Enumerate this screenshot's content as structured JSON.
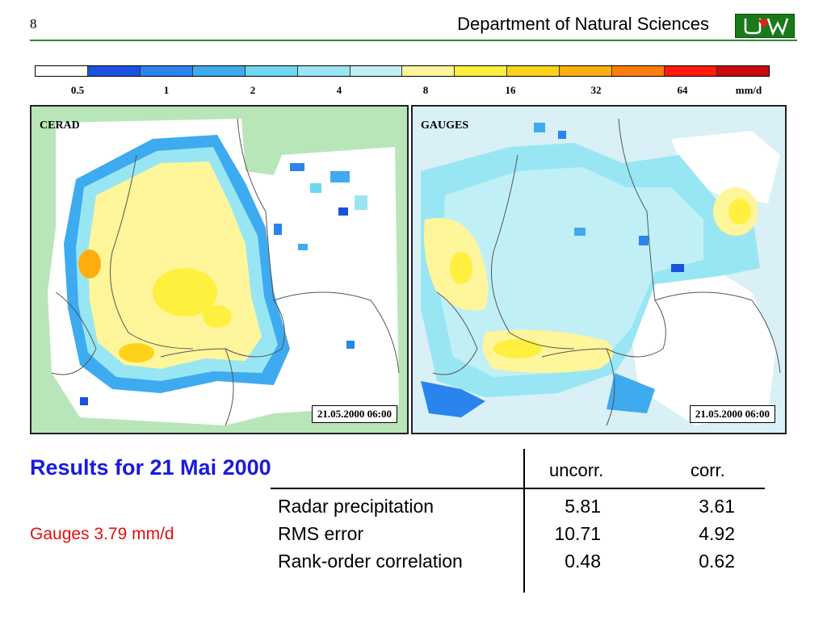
{
  "header": {
    "slide_number": "8",
    "department": "Department of Natural Sciences",
    "logo_text": "UW"
  },
  "colors": {
    "accent_green": "#2e8b2e",
    "title_blue": "#1a1adc",
    "gauges_red": "#e01010"
  },
  "legend": {
    "swatches": [
      "#ffffff",
      "#1a52e0",
      "#2a84ee",
      "#3eaaf0",
      "#6ed8f2",
      "#98e6f4",
      "#c0f0f6",
      "#fff59a",
      "#fff040",
      "#ffd21a",
      "#ffae10",
      "#ff7d10",
      "#ff1a0a",
      "#c80c0c"
    ],
    "labels": [
      "0.5",
      "1",
      "2",
      "4",
      "8",
      "16",
      "32",
      "64",
      "mm/d"
    ]
  },
  "maps": {
    "left": {
      "label": "CERAD",
      "timestamp": "21.05.2000 06:00"
    },
    "right": {
      "label": "GAUGES",
      "timestamp": "21.05.2000 06:00"
    }
  },
  "results": {
    "title": "Results for 21 Mai 2000",
    "gauges_note": "Gauges 3.79 mm/d",
    "columns": [
      "uncorr.",
      "corr."
    ],
    "rows": [
      {
        "label": "Radar precipitation",
        "uncorr": "5.81",
        "corr": "3.61"
      },
      {
        "label": "RMS error",
        "uncorr": "10.71",
        "corr": "4.92"
      },
      {
        "label": "Rank-order correlation",
        "uncorr": "0.48",
        "corr": "0.62"
      }
    ]
  }
}
